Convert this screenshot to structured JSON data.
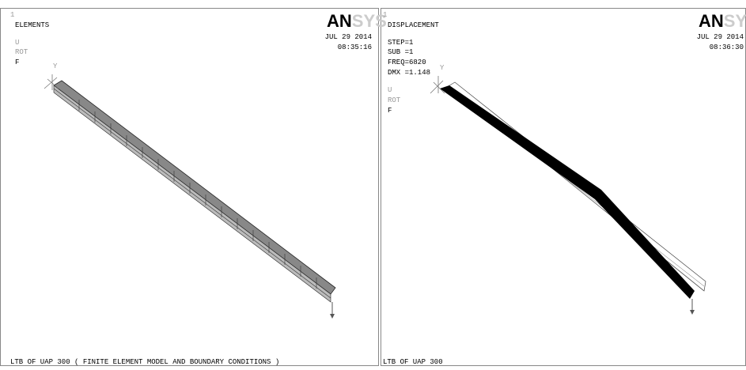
{
  "panels": [
    {
      "window": "1",
      "title": "ELEMENTS",
      "info": [],
      "legend": [
        "U",
        "ROT",
        "F"
      ],
      "date": "JUL 29 2014",
      "time": "08:35:16",
      "logo_bold": "AN",
      "logo_light": "SYS",
      "axis": "Y",
      "caption": "LTB OF UAP 300 ( FINITE ELEMENT MODEL AND BOUNDARY CONDITIONS )"
    },
    {
      "window": "1",
      "title": "DISPLACEMENT",
      "info": [
        "STEP=1",
        "SUB =1",
        "FREQ=6820",
        "DMX =1.148"
      ],
      "legend": [
        "U",
        "ROT",
        "F"
      ],
      "date": "JUL 29 2014",
      "time": "08:36:30",
      "logo_bold": "AN",
      "logo_light": "SYS",
      "axis": "Y",
      "caption": "LTB OF UAP 300"
    }
  ]
}
